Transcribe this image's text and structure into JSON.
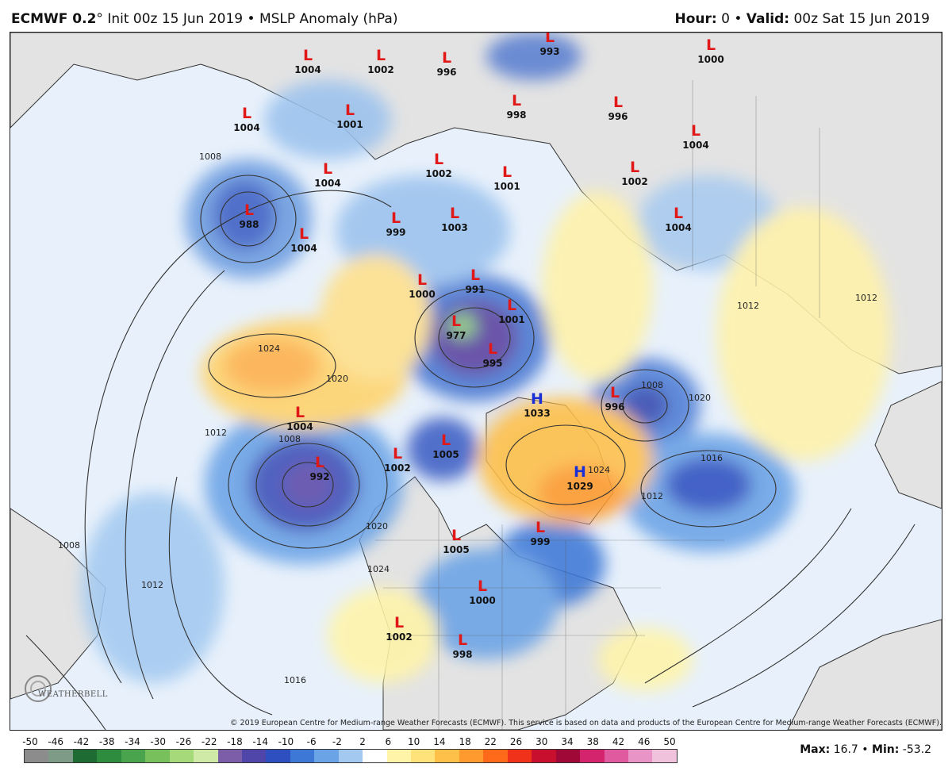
{
  "header": {
    "model": "ECMWF 0.2",
    "degree": "°",
    "init": "Init 00z 15 Jun 2019",
    "separator": "•",
    "field": "MSLP Anomaly (hPa)",
    "hour_label": "Hour:",
    "hour_value": "0",
    "valid_label": "Valid:",
    "valid_value": "00z Sat 15 Jun 2019"
  },
  "credit": "© 2019 European Centre for Medium-range Weather Forecasts (ECMWF). This service is based on data and products of the European Centre for Medium-range Weather Forecasts (ECMWF).",
  "logo_text": "WEATHERBELL",
  "colorbar": {
    "labels": [
      "-50",
      "-46",
      "-42",
      "-38",
      "-34",
      "-30",
      "-26",
      "-22",
      "-18",
      "-14",
      "-10",
      "-6",
      "-2",
      "2",
      "6",
      "10",
      "14",
      "18",
      "22",
      "26",
      "30",
      "34",
      "38",
      "42",
      "46",
      "50"
    ],
    "colors": [
      "#8c8c8c",
      "#7d9b87",
      "#1f6b34",
      "#2e8c3f",
      "#4aa34d",
      "#78c05c",
      "#a5d97a",
      "#cfeaa7",
      "#7b5ea7",
      "#5045a8",
      "#2d4fc0",
      "#3d78d6",
      "#6aa3e6",
      "#a3c9f0",
      "#ffffff",
      "#fff4a8",
      "#ffe27a",
      "#ffc04a",
      "#ff9a2e",
      "#ff6a1a",
      "#f0321a",
      "#c8102e",
      "#a00838",
      "#d4246e",
      "#e05aa0",
      "#e894c6",
      "#f0c2dc"
    ]
  },
  "max_label": "Max:",
  "max_value": "16.7",
  "min_label": "Min:",
  "min_value": "-53.2",
  "lows": [
    {
      "label": "L",
      "value": "1004"
    },
    {
      "label": "L",
      "value": "1002"
    },
    {
      "label": "L",
      "value": "996"
    },
    {
      "label": "L",
      "value": "993"
    },
    {
      "label": "L",
      "value": "1000"
    },
    {
      "label": "L",
      "value": "1004"
    },
    {
      "label": "L",
      "value": "1001"
    },
    {
      "label": "L",
      "value": "998"
    },
    {
      "label": "L",
      "value": "996"
    },
    {
      "label": "L",
      "value": "1004"
    },
    {
      "label": "L",
      "value": "1004"
    },
    {
      "label": "L",
      "value": "1002"
    },
    {
      "label": "L",
      "value": "1001"
    },
    {
      "label": "L",
      "value": "1002"
    },
    {
      "label": "L",
      "value": "988"
    },
    {
      "label": "L",
      "value": "1004"
    },
    {
      "label": "L",
      "value": "999"
    },
    {
      "label": "L",
      "value": "1003"
    },
    {
      "label": "L",
      "value": "1004"
    },
    {
      "label": "L",
      "value": "1000"
    },
    {
      "label": "L",
      "value": "991"
    },
    {
      "label": "L",
      "value": "1001"
    },
    {
      "label": "L",
      "value": "977"
    },
    {
      "label": "L",
      "value": "995"
    },
    {
      "label": "L",
      "value": "996"
    },
    {
      "label": "L",
      "value": "1004"
    },
    {
      "label": "L",
      "value": "992"
    },
    {
      "label": "L",
      "value": "1005"
    },
    {
      "label": "L",
      "value": "1002"
    },
    {
      "label": "L",
      "value": "1005"
    },
    {
      "label": "L",
      "value": "999"
    },
    {
      "label": "L",
      "value": "1000"
    },
    {
      "label": "L",
      "value": "1002"
    },
    {
      "label": "L",
      "value": "998"
    }
  ],
  "highs": [
    {
      "label": "H",
      "value": "1033"
    },
    {
      "label": "H",
      "value": "1029"
    }
  ],
  "isobar_labels": [
    "1008",
    "1024",
    "1020",
    "1012",
    "1008",
    "1020",
    "1024",
    "1016",
    "1016",
    "1012",
    "1008",
    "1020",
    "1024",
    "1012",
    "1012",
    "1008",
    "1012"
  ]
}
